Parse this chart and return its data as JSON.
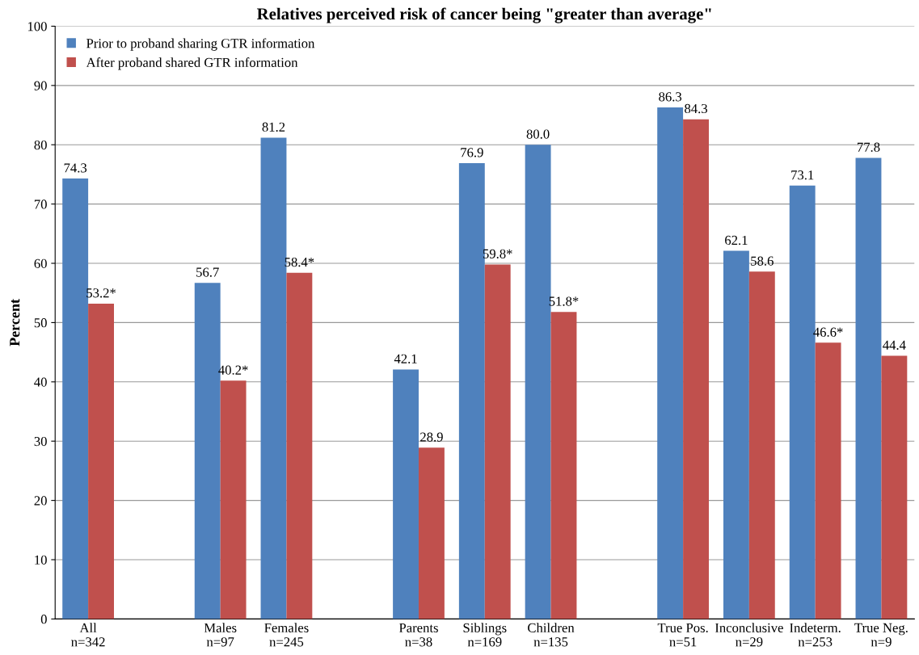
{
  "chart_data": {
    "type": "bar",
    "title": "Relatives perceived risk of cancer being \"greater than average\"",
    "ylabel": "Percent",
    "categories": [
      "All\nn=342",
      null,
      "Males\nn=97",
      "Females\nn=245",
      null,
      "Parents\nn=38",
      "Siblings\nn=169",
      "Children\nn=135",
      null,
      "True Pos.\nn=51",
      "Inconclusive\nn=29",
      "Indeterm.\nn=253",
      "True Neg.\nn=9"
    ],
    "series": [
      {
        "name": "Prior to proband sharing GTR information",
        "color": "#4f81bd",
        "values": [
          74.3,
          null,
          56.7,
          81.2,
          null,
          42.1,
          76.9,
          80.0,
          null,
          86.3,
          62.1,
          73.1,
          77.8
        ],
        "value_labels": [
          "74.3",
          null,
          "56.7",
          "81.2",
          null,
          "42.1",
          "76.9",
          "80.0",
          null,
          "86.3",
          "62.1",
          "73.1",
          "77.8"
        ]
      },
      {
        "name": "After proband shared GTR information",
        "color": "#c0504d",
        "values": [
          53.2,
          null,
          40.2,
          58.4,
          null,
          28.9,
          59.8,
          51.8,
          null,
          84.3,
          58.6,
          46.6,
          44.4
        ],
        "value_labels": [
          "53.2*",
          null,
          "40.2*",
          "58.4*",
          null,
          "28.9",
          "59.8*",
          "51.8*",
          null,
          "84.3",
          "58.6",
          "46.6*",
          "44.4"
        ]
      }
    ],
    "ylim": [
      0,
      100
    ],
    "yticks": [
      0,
      10,
      20,
      30,
      40,
      50,
      60,
      70,
      80,
      90,
      100
    ],
    "grid": "y",
    "legend": "top left"
  }
}
